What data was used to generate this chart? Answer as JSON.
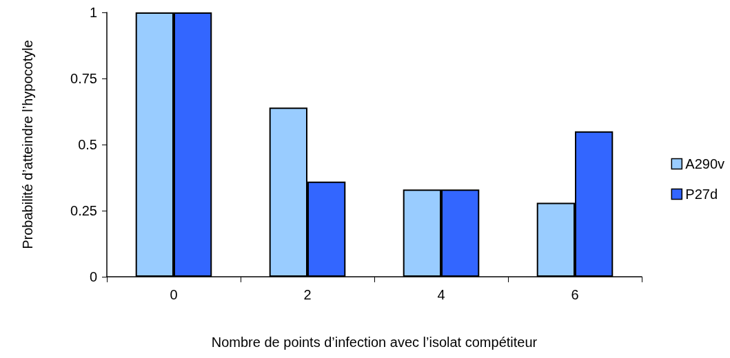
{
  "chart_data": {
    "type": "bar",
    "xlabel": "Nombre de points d’infection avec l’isolat compétiteur",
    "ylabel": "Probabilité d’atteindre l’hypocotyle",
    "categories": [
      "0",
      "2",
      "4",
      "6"
    ],
    "series": [
      {
        "name": "A290v",
        "color": "#99ccff",
        "values": [
          1,
          0.64,
          0.33,
          0.28
        ]
      },
      {
        "name": "P27d",
        "color": "#3366ff",
        "values": [
          1,
          0.36,
          0.33,
          0.55
        ]
      }
    ],
    "ylim": [
      0,
      1
    ],
    "yticks": [
      0,
      0.25,
      0.5,
      0.75,
      1
    ],
    "grid": false,
    "legend": "right"
  }
}
